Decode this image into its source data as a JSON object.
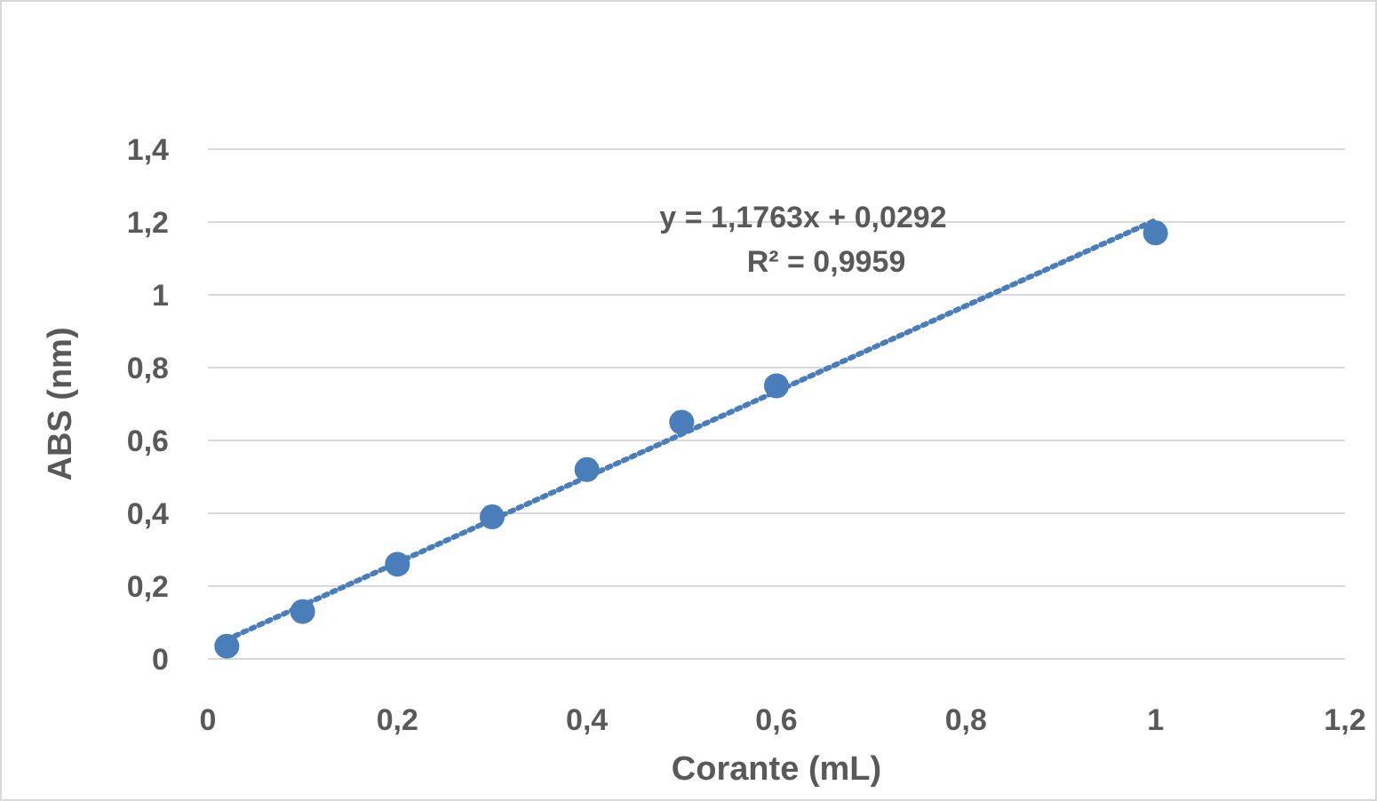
{
  "chart_data": {
    "type": "scatter",
    "xlabel": "Corante (mL)",
    "ylabel": "ABS (nm)",
    "xlim": [
      0,
      1.2
    ],
    "ylim": [
      0,
      1.4
    ],
    "xticks": [
      0,
      {
        "value": 0.2,
        "label": "0,2"
      },
      {
        "value": 0.4,
        "label": "0,4"
      },
      {
        "value": 0.6,
        "label": "0,6"
      },
      {
        "value": 0.8,
        "label": "0,8"
      },
      1,
      {
        "value": 1.2,
        "label": "1,2"
      }
    ],
    "yticks": [
      0,
      {
        "value": 0.2,
        "label": "0,2"
      },
      {
        "value": 0.4,
        "label": "0,4"
      },
      {
        "value": 0.6,
        "label": "0,6"
      },
      {
        "value": 0.8,
        "label": "0,8"
      },
      1,
      {
        "value": 1.2,
        "label": "1,2"
      },
      {
        "value": 1.4,
        "label": "1,4"
      }
    ],
    "grid": "y",
    "series": [
      {
        "marker": "circle",
        "color": "#4a7ebb",
        "x": [
          0.02,
          0.1,
          0.2,
          0.3,
          0.4,
          0.5,
          0.6,
          1
        ],
        "values": [
          0.035,
          0.13,
          0.26,
          0.39,
          0.52,
          0.65,
          0.75,
          1.17
        ]
      },
      {
        "type": "line",
        "color": "#4a7ebb",
        "line_style": "dotted",
        "x": [
          0.02,
          1
        ],
        "values": [
          0.053,
          1.205
        ]
      }
    ],
    "annotations": [
      "y = 1,1763x + 0,0292",
      "R² = 0,9959"
    ]
  }
}
